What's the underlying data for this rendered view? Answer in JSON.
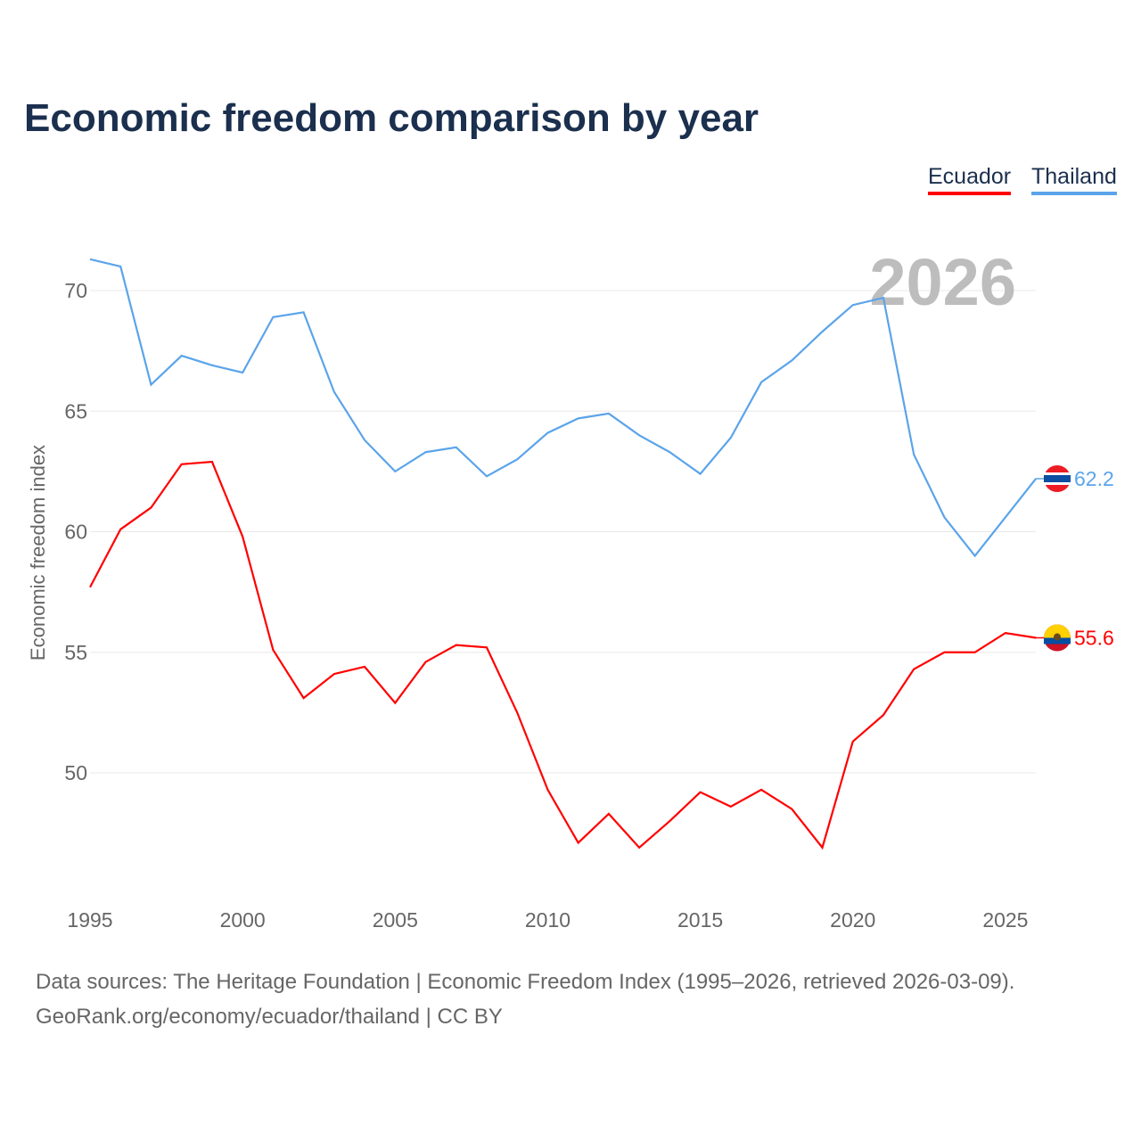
{
  "chart_data": {
    "type": "line",
    "title": "Economic freedom comparison by year",
    "xlabel": "",
    "ylabel": "Economic freedom index",
    "xlim": [
      1995,
      2026
    ],
    "ylim": [
      45.1,
      72.5
    ],
    "grid": true,
    "legend_placement": "top-right",
    "x_ticks": [
      1995,
      2000,
      2005,
      2010,
      2015,
      2020,
      2025
    ],
    "y_ticks": [
      50,
      55,
      60,
      65,
      70
    ],
    "year_watermark": "2026",
    "x": [
      1995,
      1996,
      1997,
      1998,
      1999,
      2000,
      2001,
      2002,
      2003,
      2004,
      2005,
      2006,
      2007,
      2008,
      2009,
      2010,
      2011,
      2012,
      2013,
      2014,
      2015,
      2016,
      2017,
      2018,
      2019,
      2020,
      2021,
      2022,
      2023,
      2024,
      2025,
      2026
    ],
    "series": [
      {
        "name": "Ecuador",
        "color": "#ff0000",
        "end_label": "55.6",
        "values": [
          57.7,
          60.1,
          61.0,
          62.8,
          62.9,
          59.8,
          55.1,
          53.1,
          54.1,
          54.4,
          52.9,
          54.6,
          55.3,
          55.2,
          52.5,
          49.3,
          47.1,
          48.3,
          46.9,
          48.0,
          49.2,
          48.6,
          49.3,
          48.5,
          46.9,
          51.3,
          52.4,
          54.3,
          55.0,
          55.0,
          55.8,
          55.6
        ]
      },
      {
        "name": "Thailand",
        "color": "#5ba4ea",
        "end_label": "62.2",
        "values": [
          71.3,
          71.0,
          66.1,
          67.3,
          66.9,
          66.6,
          68.9,
          69.1,
          65.8,
          63.8,
          62.5,
          63.3,
          63.5,
          62.3,
          63.0,
          64.1,
          64.7,
          64.9,
          64.0,
          63.3,
          62.4,
          63.9,
          66.2,
          67.1,
          68.3,
          69.4,
          69.7,
          63.2,
          60.6,
          59.0,
          60.6,
          62.2
        ]
      }
    ]
  },
  "footer": {
    "line1": "Data sources: The Heritage Foundation | Economic Freedom Index (1995–2026, retrieved 2026-03-09).",
    "line2": "GeoRank.org/economy/ecuador/thailand | CC BY"
  }
}
